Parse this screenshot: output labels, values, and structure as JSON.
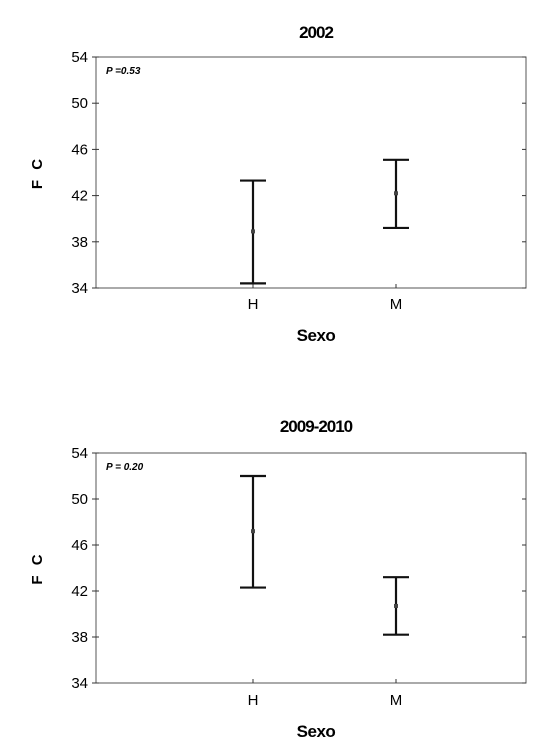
{
  "chart_data": [
    {
      "type": "errorbar",
      "title": "2002",
      "xlabel": "Sexo",
      "ylabel": "F C",
      "annotation": "P =0.53",
      "ylim": [
        34,
        54
      ],
      "yticks": [
        34,
        38,
        42,
        46,
        50,
        54
      ],
      "categories": [
        "H",
        "M"
      ],
      "series": [
        {
          "means": [
            38.9,
            42.2
          ],
          "lower": [
            34.4,
            39.2
          ],
          "upper": [
            43.3,
            45.1
          ]
        }
      ]
    },
    {
      "type": "errorbar",
      "title": "2009-2010",
      "xlabel": "Sexo",
      "ylabel": "F C",
      "annotation": "P = 0.20",
      "ylim": [
        34,
        54
      ],
      "yticks": [
        34,
        38,
        42,
        46,
        50,
        54
      ],
      "categories": [
        "H",
        "M"
      ],
      "series": [
        {
          "means": [
            47.2,
            40.7
          ],
          "lower": [
            42.3,
            38.2
          ],
          "upper": [
            52.0,
            43.2
          ]
        }
      ]
    }
  ]
}
